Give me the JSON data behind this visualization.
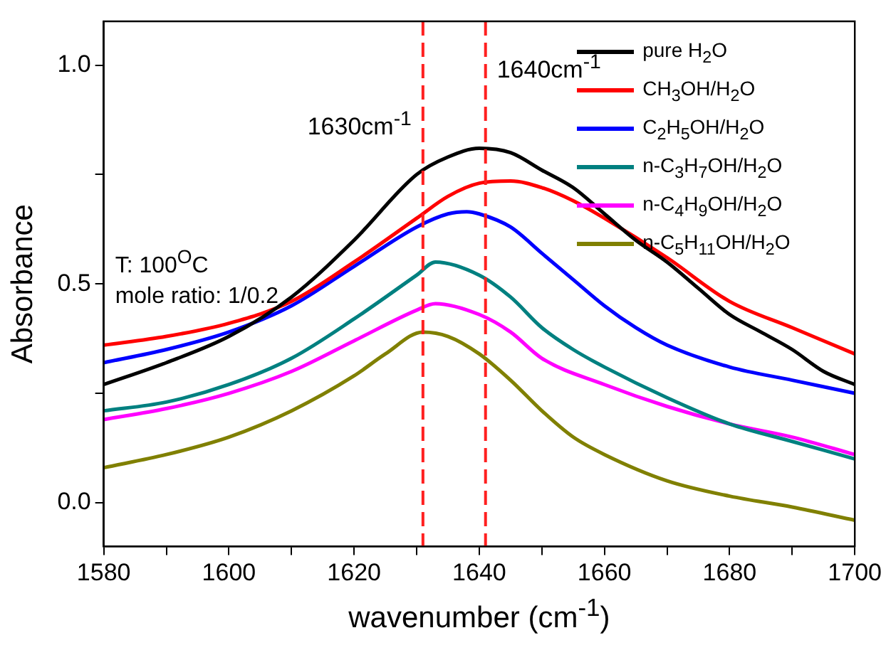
{
  "chart_data": {
    "type": "line",
    "xlabel": "wavenumber (cm$^{-1}$)",
    "ylabel": "Absorbance",
    "annotations": [
      "T: 100$^{O}$C",
      "mole ratio: 1/0.2"
    ],
    "xlim": [
      1580,
      1700
    ],
    "xticks": [
      1580,
      {
        "value": 1590,
        "label": null
      },
      1600,
      {
        "value": 1610,
        "label": null
      },
      1620,
      {
        "value": 1630,
        "label": null
      },
      1640,
      {
        "value": 1650,
        "label": null
      },
      1660,
      {
        "value": 1670,
        "label": null
      },
      1680,
      {
        "value": 1690,
        "label": null
      },
      1700
    ],
    "ylim": [
      -0.1,
      1.1
    ],
    "yticks": [
      {
        "value": 0,
        "label": "0.0"
      },
      {
        "value": 0.25,
        "label": null
      },
      {
        "value": 0.5,
        "label": "0.5"
      },
      {
        "value": 0.75,
        "label": null
      },
      {
        "value": 1,
        "label": "1.0"
      }
    ],
    "legend": "top right",
    "line_style": "solid",
    "marker": "none",
    "ref_lines": [
      {
        "axis": "x",
        "value": 1631,
        "label": "1630cm$^{-1}$",
        "color": "#ff2020",
        "line_style": "dashed"
      },
      {
        "axis": "x",
        "value": 1641,
        "label": "1640cm$^{-1}$",
        "color": "#ff2020",
        "line_style": "dashed"
      }
    ],
    "series": [
      {
        "name": "pure H$_{2}$O",
        "color": "#000000",
        "x": [
          1580,
          1590,
          1600,
          1610,
          1620,
          1630,
          1635,
          1640,
          1645,
          1650,
          1655,
          1660,
          1665,
          1670,
          1675,
          1680,
          1685,
          1690,
          1695,
          1700
        ],
        "values": [
          0.27,
          0.32,
          0.38,
          0.47,
          0.6,
          0.75,
          0.79,
          0.81,
          0.8,
          0.76,
          0.72,
          0.66,
          0.6,
          0.55,
          0.49,
          0.43,
          0.39,
          0.35,
          0.3,
          0.27
        ]
      },
      {
        "name": "CH$_{3}$OH/H$_{2}$O",
        "color": "#ff0000",
        "x": [
          1580,
          1590,
          1600,
          1610,
          1620,
          1630,
          1635,
          1640,
          1645,
          1650,
          1655,
          1660,
          1670,
          1680,
          1690,
          1700
        ],
        "values": [
          0.36,
          0.38,
          0.41,
          0.46,
          0.55,
          0.65,
          0.7,
          0.73,
          0.735,
          0.72,
          0.69,
          0.65,
          0.56,
          0.46,
          0.4,
          0.34
        ]
      },
      {
        "name": "C$_{2}$H$_{5}$OH/H$_{2}$O",
        "color": "#0000ff",
        "x": [
          1580,
          1590,
          1600,
          1610,
          1620,
          1630,
          1635,
          1638,
          1640,
          1645,
          1650,
          1655,
          1660,
          1665,
          1670,
          1680,
          1690,
          1700
        ],
        "values": [
          0.32,
          0.35,
          0.39,
          0.45,
          0.54,
          0.63,
          0.66,
          0.665,
          0.66,
          0.63,
          0.57,
          0.51,
          0.45,
          0.4,
          0.36,
          0.31,
          0.28,
          0.25
        ]
      },
      {
        "name": "n-C$_{3}$H$_{7}$OH/H$_{2}$O",
        "color": "#008080",
        "x": [
          1580,
          1590,
          1600,
          1610,
          1620,
          1630,
          1633,
          1640,
          1645,
          1650,
          1655,
          1660,
          1670,
          1680,
          1690,
          1700
        ],
        "values": [
          0.21,
          0.23,
          0.27,
          0.33,
          0.42,
          0.52,
          0.55,
          0.52,
          0.47,
          0.4,
          0.35,
          0.31,
          0.24,
          0.18,
          0.14,
          0.1
        ]
      },
      {
        "name": "n-C$_{4}$H$_{9}$OH/H$_{2}$O",
        "color": "#ff00ff",
        "x": [
          1580,
          1590,
          1600,
          1610,
          1620,
          1630,
          1633,
          1640,
          1645,
          1650,
          1660,
          1670,
          1680,
          1690,
          1700
        ],
        "values": [
          0.19,
          0.215,
          0.25,
          0.3,
          0.37,
          0.44,
          0.455,
          0.43,
          0.39,
          0.33,
          0.27,
          0.22,
          0.18,
          0.15,
          0.11
        ]
      },
      {
        "name": "n-C$_{5}$H$_{11}$OH/H$_{2}$O",
        "color": "#808000",
        "x": [
          1580,
          1590,
          1600,
          1610,
          1620,
          1625,
          1631,
          1635,
          1640,
          1645,
          1650,
          1655,
          1660,
          1670,
          1680,
          1690,
          1700
        ],
        "values": [
          0.08,
          0.11,
          0.15,
          0.21,
          0.29,
          0.34,
          0.39,
          0.38,
          0.34,
          0.28,
          0.21,
          0.15,
          0.11,
          0.05,
          0.015,
          -0.01,
          -0.04
        ]
      }
    ]
  }
}
